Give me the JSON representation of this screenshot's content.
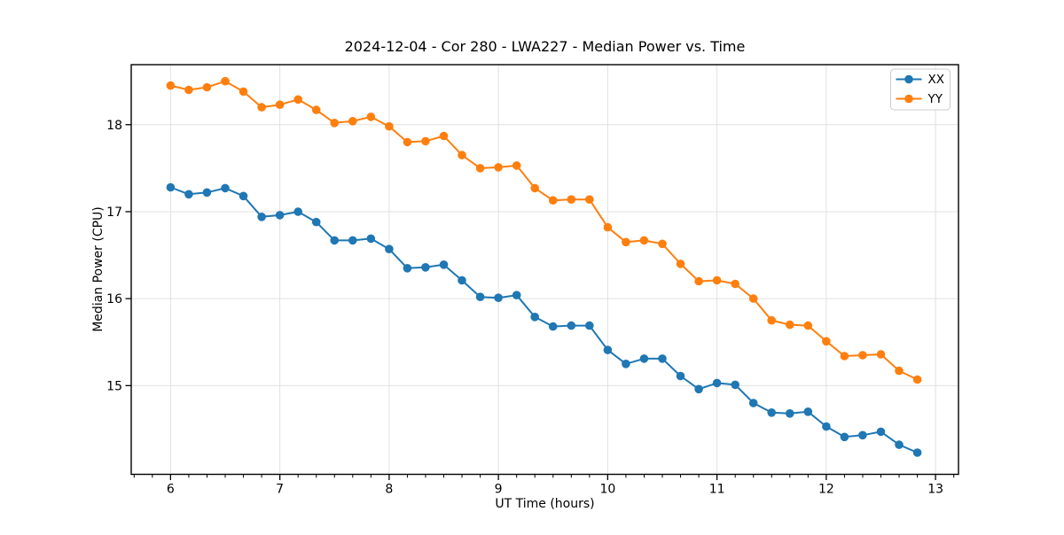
{
  "figure": {
    "background": "#ffffff"
  },
  "chart_data": {
    "type": "line",
    "title": "2024-12-04 - Cor 280 - LWA227 - Median Power vs. Time",
    "xlabel": "UT Time (hours)",
    "ylabel": "Median Power (CPU)",
    "xlim": [
      5.64,
      13.21
    ],
    "ylim": [
      13.98,
      18.69
    ],
    "xticks": [
      6,
      7,
      8,
      9,
      10,
      11,
      12,
      13
    ],
    "yticks": [
      15,
      16,
      17,
      18
    ],
    "x_minor_interval": 0.16667,
    "grid": true,
    "grid_color": "#e0e0e0",
    "axis_color": "#000000",
    "marker": "circle",
    "marker_size": 4.8,
    "line_width": 2,
    "legend_position": "upper right",
    "x": [
      6.0,
      6.1667,
      6.3333,
      6.5,
      6.6667,
      6.8333,
      7.0,
      7.1667,
      7.3333,
      7.5,
      7.6667,
      7.8333,
      8.0,
      8.1667,
      8.3333,
      8.5,
      8.6667,
      8.8333,
      9.0,
      9.1667,
      9.3333,
      9.5,
      9.6667,
      9.8333,
      10.0,
      10.1667,
      10.3333,
      10.5,
      10.6667,
      10.8333,
      11.0,
      11.1667,
      11.3333,
      11.5,
      11.6667,
      11.8333,
      12.0,
      12.1667,
      12.3333,
      12.5,
      12.6667,
      12.8333
    ],
    "series": [
      {
        "name": "XX",
        "color": "#1f77b4",
        "values": [
          17.28,
          17.2,
          17.22,
          17.27,
          17.18,
          16.94,
          16.96,
          17.0,
          16.88,
          16.67,
          16.67,
          16.69,
          16.57,
          16.35,
          16.36,
          16.39,
          16.21,
          16.02,
          16.01,
          16.04,
          15.79,
          15.68,
          15.69,
          15.69,
          15.41,
          15.25,
          15.31,
          15.31,
          15.11,
          14.96,
          15.03,
          15.01,
          14.8,
          14.69,
          14.68,
          14.7,
          14.53,
          14.41,
          14.43,
          14.47,
          14.32,
          14.23
        ]
      },
      {
        "name": "YY",
        "color": "#ff7f0e",
        "values": [
          18.45,
          18.4,
          18.43,
          18.5,
          18.38,
          18.2,
          18.23,
          18.29,
          18.17,
          18.02,
          18.04,
          18.09,
          17.98,
          17.8,
          17.81,
          17.87,
          17.65,
          17.5,
          17.51,
          17.53,
          17.27,
          17.13,
          17.14,
          17.14,
          16.82,
          16.65,
          16.67,
          16.63,
          16.4,
          16.2,
          16.21,
          16.17,
          16.0,
          15.75,
          15.7,
          15.69,
          15.51,
          15.34,
          15.35,
          15.36,
          15.17,
          15.07
        ]
      }
    ]
  }
}
